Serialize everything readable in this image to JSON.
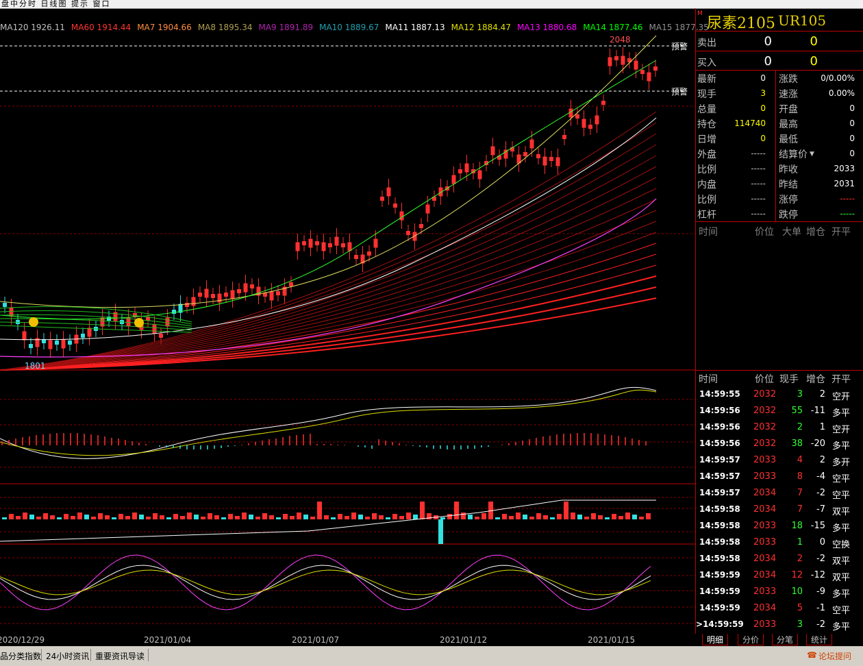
{
  "window": {
    "title_fragment": "盘中分时 日线图 提示 窗口"
  },
  "ma_legend": [
    {
      "text": "MA120 1926.11",
      "color": "#c0c0c0"
    },
    {
      "text": "MA60 1914.44",
      "color": "#ff3333"
    },
    {
      "text": "MA7 1904.66",
      "color": "#ff8c40"
    },
    {
      "text": "MA8 1895.34",
      "color": "#b0a050"
    },
    {
      "text": "MA9 1891.89",
      "color": "#b020b0"
    },
    {
      "text": "MA10 1889.67",
      "color": "#20a0b0"
    },
    {
      "text": "MA11 1887.13",
      "color": "#ffffff"
    },
    {
      "text": "MA12 1884.47",
      "color": "#e0e000"
    },
    {
      "text": "MA13 1880.68",
      "color": "#ff00ff"
    },
    {
      "text": "MA14 1877.46",
      "color": "#00ff00"
    },
    {
      "text": "MA15 1877.35",
      "color": "#909090"
    }
  ],
  "chart_labels": {
    "high": "2048",
    "low": "1801",
    "alert1": "预警",
    "alert2": "预警"
  },
  "dates": [
    "2020/12/29",
    "2021/01/04",
    "2021/01/07",
    "2021/01/12",
    "2021/01/15"
  ],
  "quote": {
    "symbol_name": "尿素2105",
    "symbol_code": "UR105",
    "sell_label": "卖出",
    "sell_price": "0",
    "sell_vol": "0",
    "buy_label": "买入",
    "buy_price": "0",
    "buy_vol": "0",
    "fields_left": [
      {
        "label": "最新",
        "value": "0",
        "color": "#ffffff"
      },
      {
        "label": "现手",
        "value": "3",
        "color": "#ffff00"
      },
      {
        "label": "总量",
        "value": "0",
        "color": "#ffff00"
      },
      {
        "label": "持仓",
        "value": "114740",
        "color": "#ffff00"
      },
      {
        "label": "日增",
        "value": "0",
        "color": "#ffff00"
      },
      {
        "label": "外盘",
        "value": "-----",
        "color": "#c0c0c0"
      },
      {
        "label": "比例",
        "value": "-----",
        "color": "#c0c0c0"
      },
      {
        "label": "内盘",
        "value": "-----",
        "color": "#c0c0c0"
      },
      {
        "label": "比例",
        "value": "-----",
        "color": "#c0c0c0"
      },
      {
        "label": "杠杆",
        "value": "-----",
        "color": "#c0c0c0"
      }
    ],
    "fields_right": [
      {
        "label": "涨跌",
        "value": "0/0.00%",
        "color": "#ffffff"
      },
      {
        "label": "速涨",
        "value": "0.00%",
        "color": "#ffffff"
      },
      {
        "label": "开盘",
        "value": "0",
        "color": "#ffffff"
      },
      {
        "label": "最高",
        "value": "0",
        "color": "#ffffff"
      },
      {
        "label": "最低",
        "value": "0",
        "color": "#ffffff"
      },
      {
        "label": "结算价",
        "value": "0",
        "color": "#ffffff"
      },
      {
        "label": "昨收",
        "value": "2033",
        "color": "#ffffff"
      },
      {
        "label": "昨结",
        "value": "2031",
        "color": "#ffffff"
      },
      {
        "label": "涨停",
        "value": "-----",
        "color": "#ff3030"
      },
      {
        "label": "跌停",
        "value": "-----",
        "color": "#30ff30"
      }
    ]
  },
  "upper_header": {
    "time": "时间",
    "price": "价位",
    "big": "大单",
    "oi": "增仓",
    "type": "开平"
  },
  "tick_header": {
    "time": "时间",
    "price": "价位",
    "vol": "现手",
    "oi": "增仓",
    "type": "开平"
  },
  "ticks": [
    {
      "time": "14:59:55",
      "price": "2032",
      "vol": "3",
      "oi": "2",
      "type": "空开"
    },
    {
      "time": "14:59:56",
      "price": "2032",
      "vol": "55",
      "oi": "-11",
      "type": "多平"
    },
    {
      "time": "14:59:56",
      "price": "2032",
      "vol": "2",
      "oi": "1",
      "type": "空开"
    },
    {
      "time": "14:59:56",
      "price": "2032",
      "vol": "38",
      "oi": "-20",
      "type": "多平"
    },
    {
      "time": "14:59:57",
      "price": "2033",
      "vol": "4",
      "oi": "2",
      "type": "多开"
    },
    {
      "time": "14:59:57",
      "price": "2033",
      "vol": "8",
      "oi": "-4",
      "type": "空平"
    },
    {
      "time": "14:59:57",
      "price": "2034",
      "vol": "7",
      "oi": "-2",
      "type": "空平"
    },
    {
      "time": "14:59:58",
      "price": "2034",
      "vol": "7",
      "oi": "-7",
      "type": "双平"
    },
    {
      "time": "14:59:58",
      "price": "2033",
      "vol": "18",
      "oi": "-15",
      "type": "多平"
    },
    {
      "time": "14:59:58",
      "price": "2033",
      "vol": "1",
      "oi": "0",
      "type": "空换"
    },
    {
      "time": "14:59:58",
      "price": "2034",
      "vol": "2",
      "oi": "-2",
      "type": "双平"
    },
    {
      "time": "14:59:59",
      "price": "2034",
      "vol": "12",
      "oi": "-12",
      "type": "双平"
    },
    {
      "time": "14:59:59",
      "price": "2033",
      "vol": "10",
      "oi": "-9",
      "type": "多平"
    },
    {
      "time": "14:59:59",
      "price": "2034",
      "vol": "5",
      "oi": "-1",
      "type": "空平"
    },
    {
      "time": "14:59:59",
      "price": "2033",
      "vol": "3",
      "oi": "-2",
      "type": "多平"
    }
  ],
  "tabs": [
    "明细",
    "分价",
    "分笔",
    "统计"
  ],
  "statusbar": {
    "items": [
      "品分类指数",
      "24小时资讯",
      "重要资讯导读"
    ],
    "forum": "论坛提问"
  },
  "colors": {
    "up": "#ff3030",
    "down": "#33e0e0",
    "grid": "#8a0000",
    "panel_border": "#c00000"
  }
}
